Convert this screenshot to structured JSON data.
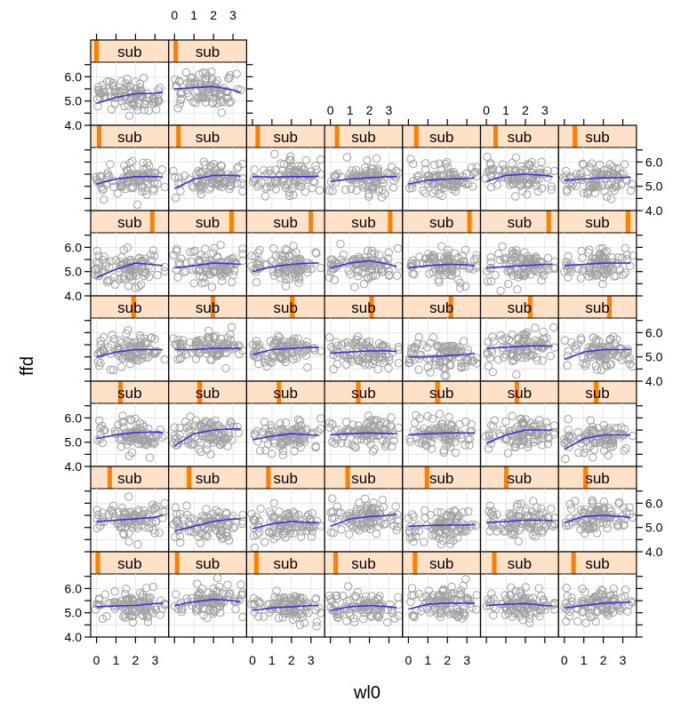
{
  "chart_data": {
    "type": "scatter",
    "layout": "lattice-panels",
    "xlabel": "wl0",
    "ylabel": "ffd",
    "xlim": [
      -0.3,
      3.7
    ],
    "ylim": [
      4.0,
      6.6
    ],
    "xticks": [
      0,
      1,
      2,
      3
    ],
    "yticks": [
      4.0,
      5.0,
      6.0
    ],
    "x_tick_labels": [
      "0",
      "1",
      "2",
      "3"
    ],
    "y_tick_labels": [
      "4.0",
      "5.0",
      "6.0"
    ],
    "strip_label": "sub",
    "point_color": "#a0a0a0",
    "smooth_line_color": "#3a2ee0",
    "strip_background": "#ffe1c8",
    "strip_indicator_color": "#ff7f00",
    "panels": [
      {
        "row": 1,
        "col": 1,
        "smooth_x": [
          0,
          1,
          2,
          3,
          3.4
        ],
        "smooth_y": [
          4.9,
          5.15,
          5.3,
          5.32,
          5.35
        ],
        "strip_level": 0.0
      },
      {
        "row": 1,
        "col": 2,
        "smooth_x": [
          0,
          1,
          2,
          3,
          3.4
        ],
        "smooth_y": [
          5.5,
          5.55,
          5.6,
          5.45,
          5.35
        ],
        "strip_level": 0.02
      },
      {
        "row": 2,
        "col": 1,
        "smooth_x": [
          0,
          1,
          2,
          3,
          3.4
        ],
        "smooth_y": [
          5.1,
          5.3,
          5.4,
          5.4,
          5.38
        ],
        "strip_level": 0.04
      },
      {
        "row": 2,
        "col": 2,
        "smooth_x": [
          0,
          1,
          2,
          3,
          3.4
        ],
        "smooth_y": [
          4.9,
          5.3,
          5.45,
          5.45,
          5.42
        ],
        "strip_level": 0.06
      },
      {
        "row": 2,
        "col": 3,
        "smooth_x": [
          0,
          1,
          2,
          3,
          3.4
        ],
        "smooth_y": [
          5.4,
          5.38,
          5.4,
          5.4,
          5.42
        ],
        "strip_level": 0.08
      },
      {
        "row": 2,
        "col": 4,
        "smooth_x": [
          0,
          1,
          2,
          3,
          3.4
        ],
        "smooth_y": [
          5.2,
          5.3,
          5.35,
          5.4,
          5.4
        ],
        "strip_level": 0.1
      },
      {
        "row": 2,
        "col": 5,
        "smooth_x": [
          0,
          1,
          2,
          3,
          3.4
        ],
        "smooth_y": [
          5.1,
          5.25,
          5.3,
          5.32,
          5.35
        ],
        "strip_level": 0.12
      },
      {
        "row": 2,
        "col": 6,
        "smooth_x": [
          0,
          1,
          2,
          3,
          3.4
        ],
        "smooth_y": [
          5.2,
          5.45,
          5.5,
          5.45,
          5.4
        ],
        "strip_level": 0.14
      },
      {
        "row": 2,
        "col": 7,
        "smooth_x": [
          0,
          1,
          2,
          3,
          3.4
        ],
        "smooth_y": [
          5.25,
          5.3,
          5.35,
          5.35,
          5.38
        ],
        "strip_level": 0.16
      },
      {
        "row": 3,
        "col": 1,
        "smooth_x": [
          0,
          1,
          2,
          3,
          3.4
        ],
        "smooth_y": [
          4.75,
          5.1,
          5.35,
          5.28,
          5.25
        ],
        "strip_level": 0.84
      },
      {
        "row": 3,
        "col": 2,
        "smooth_x": [
          0,
          1,
          2,
          3,
          3.4
        ],
        "smooth_y": [
          5.15,
          5.25,
          5.35,
          5.32,
          5.3
        ],
        "strip_level": 0.86
      },
      {
        "row": 3,
        "col": 3,
        "smooth_x": [
          0,
          1,
          2,
          3,
          3.4
        ],
        "smooth_y": [
          5.0,
          5.2,
          5.3,
          5.35,
          5.35
        ],
        "strip_level": 0.88
      },
      {
        "row": 3,
        "col": 4,
        "smooth_x": [
          0,
          1,
          2,
          3,
          3.4
        ],
        "smooth_y": [
          5.15,
          5.35,
          5.45,
          5.3,
          5.2
        ],
        "strip_level": 0.9
      },
      {
        "row": 3,
        "col": 5,
        "smooth_x": [
          0,
          1,
          2,
          3,
          3.4
        ],
        "smooth_y": [
          5.15,
          5.25,
          5.3,
          5.28,
          5.25
        ],
        "strip_level": 0.92
      },
      {
        "row": 3,
        "col": 6,
        "smooth_x": [
          0,
          1,
          2,
          3,
          3.4
        ],
        "smooth_y": [
          5.15,
          5.2,
          5.25,
          5.3,
          5.3
        ],
        "strip_level": 0.94
      },
      {
        "row": 3,
        "col": 7,
        "smooth_x": [
          0,
          1,
          2,
          3,
          3.4
        ],
        "smooth_y": [
          5.25,
          5.3,
          5.35,
          5.35,
          5.35
        ],
        "strip_level": 0.96
      },
      {
        "row": 4,
        "col": 1,
        "smooth_x": [
          0,
          1,
          2,
          3,
          3.4
        ],
        "smooth_y": [
          5.0,
          5.2,
          5.3,
          5.3,
          5.3
        ],
        "strip_level": 0.56
      },
      {
        "row": 4,
        "col": 2,
        "smooth_x": [
          0,
          1,
          2,
          3,
          3.4
        ],
        "smooth_y": [
          5.3,
          5.3,
          5.35,
          5.35,
          5.35
        ],
        "strip_level": 0.58
      },
      {
        "row": 4,
        "col": 3,
        "smooth_x": [
          0,
          1,
          2,
          3,
          3.4
        ],
        "smooth_y": [
          5.1,
          5.3,
          5.35,
          5.4,
          5.38
        ],
        "strip_level": 0.6
      },
      {
        "row": 4,
        "col": 4,
        "smooth_x": [
          0,
          1,
          2,
          3,
          3.4
        ],
        "smooth_y": [
          5.15,
          5.2,
          5.25,
          5.25,
          5.22
        ],
        "strip_level": 0.62
      },
      {
        "row": 4,
        "col": 5,
        "smooth_x": [
          0,
          1,
          2,
          3,
          3.4
        ],
        "smooth_y": [
          5.0,
          5.0,
          5.05,
          5.1,
          5.15
        ],
        "strip_level": 0.64
      },
      {
        "row": 4,
        "col": 6,
        "smooth_x": [
          0,
          1,
          2,
          3,
          3.4
        ],
        "smooth_y": [
          5.35,
          5.4,
          5.45,
          5.45,
          5.45
        ],
        "strip_level": 0.66
      },
      {
        "row": 4,
        "col": 7,
        "smooth_x": [
          0,
          1,
          2,
          3,
          3.4
        ],
        "smooth_y": [
          4.9,
          5.2,
          5.3,
          5.3,
          5.3
        ],
        "strip_level": 0.68
      },
      {
        "row": 5,
        "col": 1,
        "smooth_x": [
          0,
          1,
          2,
          3,
          3.4
        ],
        "smooth_y": [
          5.15,
          5.3,
          5.4,
          5.42,
          5.4
        ],
        "strip_level": 0.36
      },
      {
        "row": 5,
        "col": 2,
        "smooth_x": [
          0,
          1,
          2,
          3,
          3.4
        ],
        "smooth_y": [
          4.85,
          5.35,
          5.5,
          5.55,
          5.55
        ],
        "strip_level": 0.38
      },
      {
        "row": 5,
        "col": 3,
        "smooth_x": [
          0,
          1,
          2,
          3,
          3.4
        ],
        "smooth_y": [
          5.1,
          5.25,
          5.35,
          5.3,
          5.28
        ],
        "strip_level": 0.4
      },
      {
        "row": 5,
        "col": 4,
        "smooth_x": [
          0,
          1,
          2,
          3,
          3.4
        ],
        "smooth_y": [
          5.3,
          5.35,
          5.38,
          5.35,
          5.35
        ],
        "strip_level": 0.42
      },
      {
        "row": 5,
        "col": 5,
        "smooth_x": [
          0,
          1,
          2,
          3,
          3.4
        ],
        "smooth_y": [
          5.3,
          5.35,
          5.38,
          5.38,
          5.38
        ],
        "strip_level": 0.44
      },
      {
        "row": 5,
        "col": 6,
        "smooth_x": [
          0,
          1,
          2,
          3,
          3.4
        ],
        "smooth_y": [
          4.95,
          5.3,
          5.5,
          5.5,
          5.5
        ],
        "strip_level": 0.46
      },
      {
        "row": 5,
        "col": 7,
        "smooth_x": [
          0,
          1,
          2,
          3,
          3.4
        ],
        "smooth_y": [
          4.7,
          5.15,
          5.3,
          5.3,
          5.3
        ],
        "strip_level": 0.48
      },
      {
        "row": 6,
        "col": 1,
        "smooth_x": [
          0,
          1,
          2,
          3,
          3.4
        ],
        "smooth_y": [
          5.25,
          5.3,
          5.35,
          5.42,
          5.5
        ],
        "strip_level": 0.2
      },
      {
        "row": 6,
        "col": 2,
        "smooth_x": [
          0,
          1,
          2,
          3,
          3.4
        ],
        "smooth_y": [
          4.85,
          5.05,
          5.25,
          5.35,
          5.35
        ],
        "strip_level": 0.22
      },
      {
        "row": 6,
        "col": 3,
        "smooth_x": [
          0,
          1,
          2,
          3,
          3.4
        ],
        "smooth_y": [
          4.95,
          5.15,
          5.25,
          5.2,
          5.2
        ],
        "strip_level": 0.24
      },
      {
        "row": 6,
        "col": 4,
        "smooth_x": [
          0,
          1,
          2,
          3,
          3.4
        ],
        "smooth_y": [
          5.05,
          5.35,
          5.45,
          5.5,
          5.55
        ],
        "strip_level": 0.26
      },
      {
        "row": 6,
        "col": 5,
        "smooth_x": [
          0,
          1,
          2,
          3,
          3.4
        ],
        "smooth_y": [
          5.05,
          5.08,
          5.1,
          5.1,
          5.12
        ],
        "strip_level": 0.28
      },
      {
        "row": 6,
        "col": 6,
        "smooth_x": [
          0,
          1,
          2,
          3,
          3.4
        ],
        "smooth_y": [
          5.2,
          5.25,
          5.3,
          5.3,
          5.28
        ],
        "strip_level": 0.3
      },
      {
        "row": 6,
        "col": 7,
        "smooth_x": [
          0,
          1,
          2,
          3,
          3.4
        ],
        "smooth_y": [
          5.2,
          5.45,
          5.5,
          5.45,
          5.4
        ],
        "strip_level": 0.32
      },
      {
        "row": 7,
        "col": 1,
        "smooth_x": [
          0,
          1,
          2,
          3,
          3.4
        ],
        "smooth_y": [
          5.25,
          5.28,
          5.3,
          5.38,
          5.4
        ],
        "strip_level": 0.02
      },
      {
        "row": 7,
        "col": 2,
        "smooth_x": [
          0,
          1,
          2,
          3,
          3.4
        ],
        "smooth_y": [
          5.3,
          5.45,
          5.55,
          5.5,
          5.45
        ],
        "strip_level": 0.04
      },
      {
        "row": 7,
        "col": 3,
        "smooth_x": [
          0,
          1,
          2,
          3,
          3.4
        ],
        "smooth_y": [
          5.1,
          5.2,
          5.25,
          5.3,
          5.3
        ],
        "strip_level": 0.06
      },
      {
        "row": 7,
        "col": 4,
        "smooth_x": [
          0,
          1,
          2,
          3,
          3.4
        ],
        "smooth_y": [
          5.1,
          5.25,
          5.3,
          5.25,
          5.2
        ],
        "strip_level": 0.08
      },
      {
        "row": 7,
        "col": 5,
        "smooth_x": [
          0,
          1,
          2,
          3,
          3.4
        ],
        "smooth_y": [
          5.15,
          5.35,
          5.4,
          5.4,
          5.4
        ],
        "strip_level": 0.1
      },
      {
        "row": 7,
        "col": 6,
        "smooth_x": [
          0,
          1,
          2,
          3,
          3.4
        ],
        "smooth_y": [
          5.3,
          5.35,
          5.38,
          5.3,
          5.28
        ],
        "strip_level": 0.12
      },
      {
        "row": 7,
        "col": 7,
        "smooth_x": [
          0,
          1,
          2,
          3,
          3.4
        ],
        "smooth_y": [
          5.2,
          5.3,
          5.4,
          5.42,
          5.45
        ],
        "strip_level": 0.14
      }
    ]
  }
}
